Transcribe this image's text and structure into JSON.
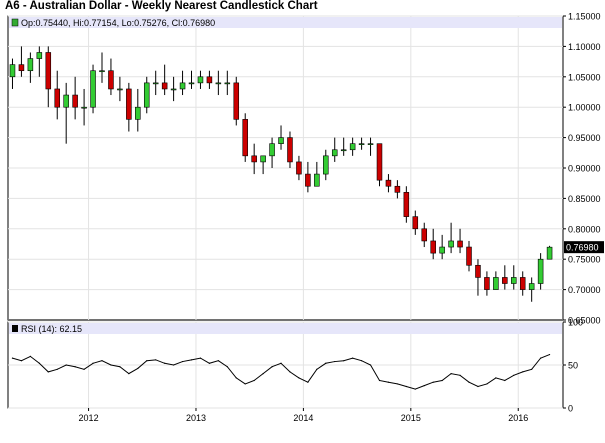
{
  "title": "A6 - Australian Dollar - Weekly Nearest Candlestick Chart",
  "price_legend": "Op:0.75440, Hi:0.77154, Lo:0.75276, Cl:0.76980",
  "rsi_legend": "RSI (14): 62.15",
  "last_price_label": "0.76980",
  "colors": {
    "up": "#33cc33",
    "down": "#cc0000",
    "wick": "#000000",
    "legend_bg": "#e6e6fa",
    "grid": "#e3e3e3",
    "last_price_box": "#000000",
    "legend_swatch": "#33aa33"
  },
  "chart_data": [
    {
      "type": "candlestick",
      "title": "A6 - Australian Dollar - Weekly Nearest Candlestick Chart",
      "legend": "Op:0.75440, Hi:0.77154, Lo:0.75276, Cl:0.76980",
      "x_tick_labels": [
        "2012",
        "2013",
        "2014",
        "2015",
        "2016"
      ],
      "xlim": [
        "2011-04",
        "2016-05"
      ],
      "y_tick_labels": [
        "1.15000",
        "1.10000",
        "1.05000",
        "1.00000",
        "0.95000",
        "0.90000",
        "0.85000",
        "0.80000",
        "0.75000",
        "0.70000",
        "0.65000"
      ],
      "ylim": [
        0.65,
        1.15
      ],
      "grid": true,
      "last": {
        "open": 0.7544,
        "high": 0.77154,
        "low": 0.75276,
        "close": 0.7698
      },
      "series": [
        {
          "x": [
            "2011-04",
            "2011-05",
            "2011-06",
            "2011-07",
            "2011-08",
            "2011-09",
            "2011-10",
            "2011-11",
            "2011-12",
            "2012-01",
            "2012-02",
            "2012-03",
            "2012-04",
            "2012-05",
            "2012-06",
            "2012-07",
            "2012-08",
            "2012-09",
            "2012-10",
            "2012-11",
            "2012-12",
            "2013-01",
            "2013-02",
            "2013-03",
            "2013-04",
            "2013-05",
            "2013-06",
            "2013-07",
            "2013-08",
            "2013-09",
            "2013-10",
            "2013-11",
            "2013-12",
            "2014-01",
            "2014-02",
            "2014-03",
            "2014-04",
            "2014-05",
            "2014-06",
            "2014-07",
            "2014-08",
            "2014-09",
            "2014-10",
            "2014-11",
            "2014-12",
            "2015-01",
            "2015-02",
            "2015-03",
            "2015-04",
            "2015-05",
            "2015-06",
            "2015-07",
            "2015-08",
            "2015-09",
            "2015-10",
            "2015-11",
            "2015-12",
            "2016-01",
            "2016-02",
            "2016-03",
            "2016-04"
          ],
          "open": [
            1.05,
            1.07,
            1.06,
            1.08,
            1.09,
            1.03,
            1.0,
            1.02,
            1.0,
            1.0,
            1.06,
            1.06,
            1.03,
            1.03,
            0.98,
            1.0,
            1.04,
            1.04,
            1.03,
            1.03,
            1.04,
            1.04,
            1.05,
            1.04,
            1.04,
            1.04,
            0.98,
            0.92,
            0.91,
            0.92,
            0.94,
            0.95,
            0.91,
            0.89,
            0.87,
            0.89,
            0.92,
            0.93,
            0.93,
            0.94,
            0.94,
            0.94,
            0.88,
            0.87,
            0.86,
            0.82,
            0.8,
            0.78,
            0.76,
            0.77,
            0.78,
            0.77,
            0.74,
            0.72,
            0.7,
            0.72,
            0.71,
            0.72,
            0.7,
            0.71,
            0.75
          ],
          "high": [
            1.08,
            1.1,
            1.09,
            1.1,
            1.1,
            1.06,
            1.04,
            1.05,
            1.03,
            1.07,
            1.09,
            1.08,
            1.05,
            1.04,
            1.03,
            1.05,
            1.06,
            1.07,
            1.05,
            1.06,
            1.06,
            1.06,
            1.06,
            1.06,
            1.06,
            1.05,
            0.99,
            0.94,
            0.92,
            0.95,
            0.97,
            0.96,
            0.92,
            0.91,
            0.91,
            0.93,
            0.95,
            0.95,
            0.95,
            0.95,
            0.95,
            0.94,
            0.89,
            0.88,
            0.87,
            0.83,
            0.81,
            0.8,
            0.79,
            0.81,
            0.8,
            0.78,
            0.75,
            0.73,
            0.73,
            0.74,
            0.74,
            0.73,
            0.72,
            0.76,
            0.772
          ],
          "low": [
            1.03,
            1.05,
            1.04,
            1.05,
            1.0,
            0.98,
            0.94,
            0.98,
            0.97,
            0.99,
            1.04,
            1.02,
            1.01,
            0.96,
            0.96,
            0.99,
            1.02,
            1.02,
            1.01,
            1.02,
            1.03,
            1.03,
            1.03,
            1.02,
            1.02,
            0.97,
            0.91,
            0.89,
            0.89,
            0.9,
            0.93,
            0.9,
            0.88,
            0.86,
            0.87,
            0.88,
            0.91,
            0.92,
            0.92,
            0.93,
            0.92,
            0.87,
            0.86,
            0.85,
            0.81,
            0.79,
            0.77,
            0.75,
            0.75,
            0.76,
            0.76,
            0.73,
            0.69,
            0.69,
            0.7,
            0.7,
            0.7,
            0.69,
            0.68,
            0.7,
            0.75
          ],
          "close": [
            1.07,
            1.06,
            1.08,
            1.09,
            1.03,
            1.0,
            1.02,
            1.0,
            1.0,
            1.06,
            1.06,
            1.03,
            1.03,
            0.98,
            1.0,
            1.04,
            1.04,
            1.03,
            1.03,
            1.04,
            1.04,
            1.05,
            1.04,
            1.04,
            1.04,
            0.98,
            0.92,
            0.91,
            0.92,
            0.94,
            0.95,
            0.91,
            0.89,
            0.87,
            0.89,
            0.92,
            0.93,
            0.93,
            0.94,
            0.94,
            0.94,
            0.88,
            0.87,
            0.86,
            0.82,
            0.8,
            0.78,
            0.76,
            0.77,
            0.78,
            0.77,
            0.74,
            0.72,
            0.7,
            0.72,
            0.71,
            0.72,
            0.7,
            0.71,
            0.75,
            0.7698
          ]
        }
      ]
    },
    {
      "type": "line",
      "legend": "RSI (14): 62.15",
      "y_tick_labels": [
        "100",
        "50",
        "0"
      ],
      "ylim": [
        0,
        100
      ],
      "grid": true,
      "series": [
        {
          "x": [
            "2011-04",
            "2011-05",
            "2011-06",
            "2011-07",
            "2011-08",
            "2011-09",
            "2011-10",
            "2011-11",
            "2011-12",
            "2012-01",
            "2012-02",
            "2012-03",
            "2012-04",
            "2012-05",
            "2012-06",
            "2012-07",
            "2012-08",
            "2012-09",
            "2012-10",
            "2012-11",
            "2012-12",
            "2013-01",
            "2013-02",
            "2013-03",
            "2013-04",
            "2013-05",
            "2013-06",
            "2013-07",
            "2013-08",
            "2013-09",
            "2013-10",
            "2013-11",
            "2013-12",
            "2014-01",
            "2014-02",
            "2014-03",
            "2014-04",
            "2014-05",
            "2014-06",
            "2014-07",
            "2014-08",
            "2014-09",
            "2014-10",
            "2014-11",
            "2014-12",
            "2015-01",
            "2015-02",
            "2015-03",
            "2015-04",
            "2015-05",
            "2015-06",
            "2015-07",
            "2015-08",
            "2015-09",
            "2015-10",
            "2015-11",
            "2015-12",
            "2016-01",
            "2016-02",
            "2016-03",
            "2016-04"
          ],
          "y": [
            58,
            55,
            60,
            52,
            42,
            45,
            50,
            48,
            45,
            52,
            55,
            50,
            48,
            40,
            46,
            55,
            56,
            52,
            50,
            54,
            56,
            58,
            52,
            55,
            48,
            35,
            28,
            32,
            40,
            48,
            52,
            42,
            35,
            30,
            45,
            52,
            54,
            55,
            58,
            55,
            50,
            32,
            30,
            28,
            25,
            22,
            26,
            30,
            32,
            40,
            38,
            30,
            25,
            28,
            35,
            32,
            38,
            42,
            45,
            58,
            62.15
          ]
        }
      ]
    }
  ]
}
